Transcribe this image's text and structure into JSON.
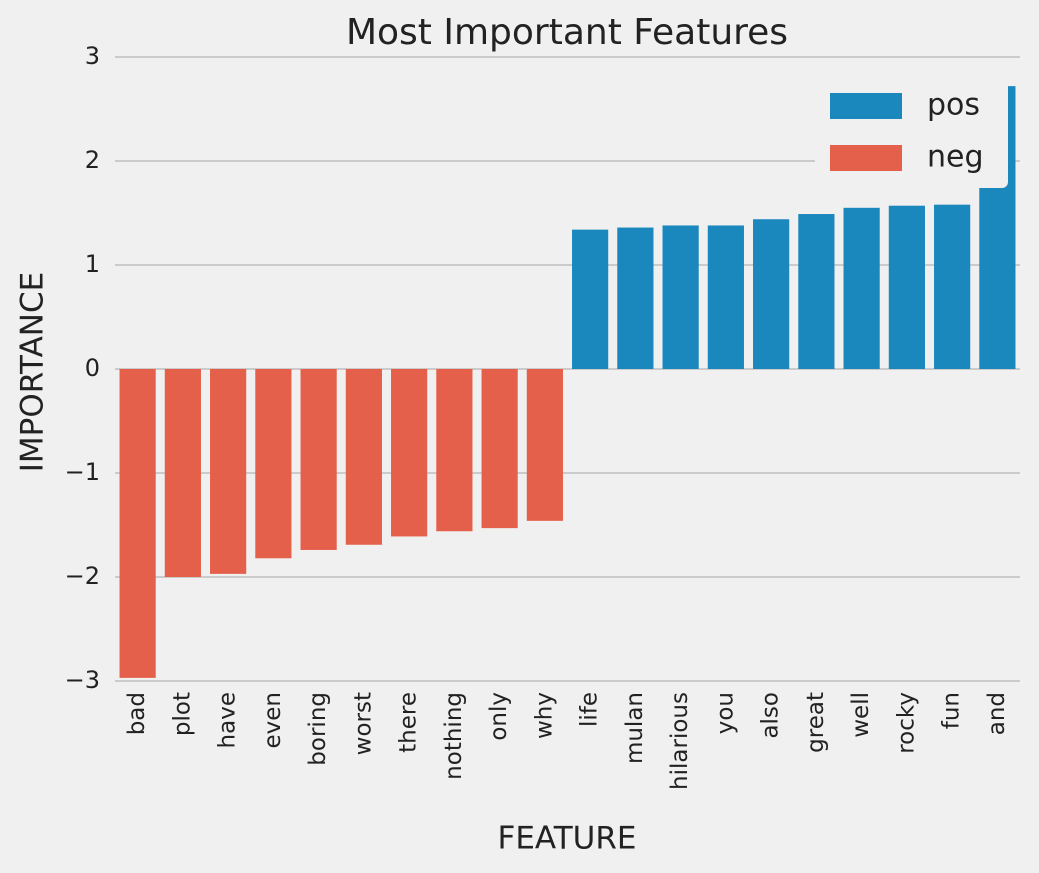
{
  "chart_data": {
    "type": "bar",
    "title": "Most Important Features",
    "x_label": "FEATURE",
    "y_label": "IMPORTANCE",
    "categories": [
      "bad",
      "plot",
      "have",
      "even",
      "boring",
      "worst",
      "there",
      "nothing",
      "only",
      "why",
      "life",
      "mulan",
      "hilarious",
      "you",
      "also",
      "great",
      "well",
      "rocky",
      "fun",
      "and"
    ],
    "series": [
      {
        "name": "pos",
        "color": "#1a87bd",
        "values": [
          null,
          null,
          null,
          null,
          null,
          null,
          null,
          null,
          null,
          null,
          1.34,
          1.36,
          1.38,
          1.38,
          1.44,
          1.49,
          1.55,
          1.57,
          1.58,
          2.72
        ]
      },
      {
        "name": "neg",
        "color": "#e5604a",
        "values": [
          -2.97,
          -2.0,
          -1.97,
          -1.82,
          -1.74,
          -1.69,
          -1.61,
          -1.56,
          -1.53,
          -1.46,
          null,
          null,
          null,
          null,
          null,
          null,
          null,
          null,
          null,
          null
        ]
      }
    ],
    "ylim": [
      -3,
      3
    ],
    "yticks": [
      {
        "value": -3,
        "label": "−3"
      },
      {
        "value": -2,
        "label": "−2"
      },
      {
        "value": -1,
        "label": "−1"
      },
      0,
      1,
      2,
      3
    ],
    "grid": true,
    "legend": "upper right"
  }
}
